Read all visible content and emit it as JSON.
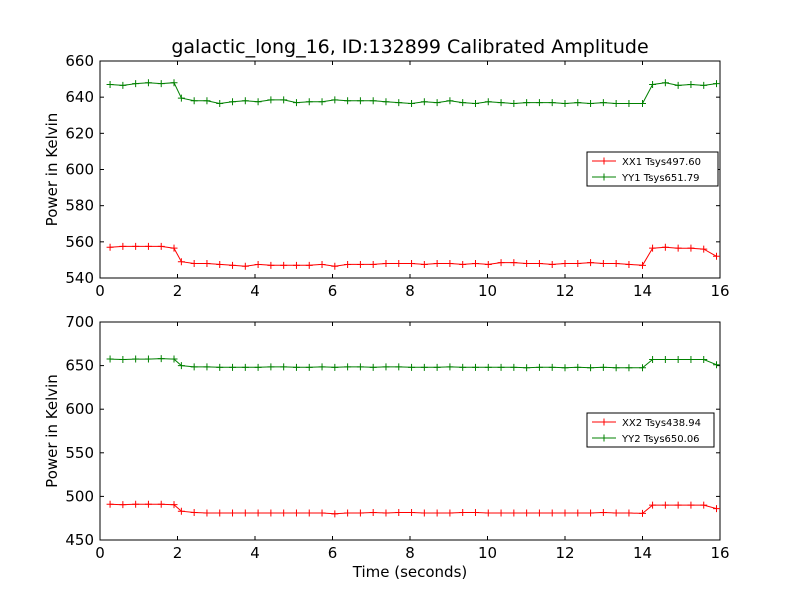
{
  "chart_data": [
    {
      "type": "line",
      "title": "galactic_long_16, ID:132899 Calibrated Amplitude",
      "xlabel": "",
      "ylabel": "Power in Kelvin",
      "xlim": [
        0,
        16
      ],
      "ylim": [
        540,
        660
      ],
      "xticks": [
        "0",
        "2",
        "4",
        "6",
        "8",
        "10",
        "12",
        "14",
        "16"
      ],
      "yticks": [
        "540",
        "560",
        "580",
        "600",
        "620",
        "640",
        "660"
      ],
      "legend": "center-right",
      "x": [
        0.26,
        0.59,
        0.92,
        1.25,
        1.58,
        1.91,
        2.1,
        2.43,
        2.76,
        3.09,
        3.42,
        3.75,
        4.08,
        4.41,
        4.74,
        5.07,
        5.4,
        5.73,
        6.06,
        6.39,
        6.72,
        7.05,
        7.38,
        7.71,
        8.04,
        8.37,
        8.7,
        9.03,
        9.36,
        9.69,
        10.02,
        10.35,
        10.68,
        11.01,
        11.34,
        11.67,
        12.0,
        12.33,
        12.66,
        12.99,
        13.32,
        13.65,
        14.0,
        14.26,
        14.59,
        14.92,
        15.25,
        15.58,
        15.91
      ],
      "series": [
        {
          "name": "XX1 Tsys497.60",
          "color": "#ff0000",
          "values": [
            557,
            557.5,
            557.5,
            557.5,
            557.5,
            556.5,
            549,
            548,
            548,
            547.5,
            547,
            546.5,
            547.5,
            547,
            547,
            547,
            547,
            547.5,
            546.5,
            547.5,
            547.5,
            547.5,
            548,
            548,
            548,
            547.5,
            548,
            548,
            547.5,
            548,
            547.5,
            548.5,
            548.5,
            548,
            548,
            547.5,
            548,
            548,
            548.5,
            548,
            548,
            547.5,
            547,
            556.5,
            557,
            556.5,
            556.5,
            556,
            552
          ]
        },
        {
          "name": "YY1 Tsys651.79",
          "color": "#008000",
          "values": [
            647,
            646.5,
            647.5,
            648,
            647.5,
            648,
            639.5,
            638,
            638,
            636.5,
            637.5,
            638,
            637.5,
            638.5,
            638.5,
            637,
            637.5,
            637.5,
            638.5,
            638,
            638,
            638,
            637.5,
            637,
            636.5,
            637.5,
            637,
            638,
            637,
            636.5,
            637.5,
            637,
            636.5,
            637,
            637,
            637,
            636.5,
            637,
            636.5,
            637,
            636.5,
            636.5,
            636.5,
            647,
            648,
            646.5,
            647,
            646.5,
            647.5
          ]
        }
      ]
    },
    {
      "type": "line",
      "title": "",
      "xlabel": "Time (seconds)",
      "ylabel": "Power in Kelvin",
      "xlim": [
        0,
        16
      ],
      "ylim": [
        450,
        700
      ],
      "xticks": [
        "0",
        "2",
        "4",
        "6",
        "8",
        "10",
        "12",
        "14",
        "16"
      ],
      "yticks": [
        "450",
        "500",
        "550",
        "600",
        "650",
        "700"
      ],
      "legend": "center-right",
      "x": [
        0.26,
        0.59,
        0.92,
        1.25,
        1.58,
        1.91,
        2.1,
        2.43,
        2.76,
        3.09,
        3.42,
        3.75,
        4.08,
        4.41,
        4.74,
        5.07,
        5.4,
        5.73,
        6.06,
        6.39,
        6.72,
        7.05,
        7.38,
        7.71,
        8.04,
        8.37,
        8.7,
        9.03,
        9.36,
        9.69,
        10.02,
        10.35,
        10.68,
        11.01,
        11.34,
        11.67,
        12.0,
        12.33,
        12.66,
        12.99,
        13.32,
        13.65,
        14.0,
        14.26,
        14.59,
        14.92,
        15.25,
        15.58,
        15.91
      ],
      "series": [
        {
          "name": "XX2 Tsys438.94",
          "color": "#ff0000",
          "values": [
            491,
            490.5,
            491,
            491,
            491,
            490.5,
            483,
            481.5,
            481,
            481,
            481,
            481,
            481,
            481,
            481,
            481,
            481,
            481,
            480,
            481,
            481,
            481.5,
            481,
            481.5,
            481.5,
            481,
            481,
            481,
            481.5,
            481.5,
            481,
            481,
            481,
            481,
            481,
            481,
            481,
            481,
            481,
            481.5,
            481,
            481,
            480.5,
            490,
            490,
            490,
            490,
            490,
            486
          ]
        },
        {
          "name": "YY2 Tsys650.06",
          "color": "#008000",
          "values": [
            657.5,
            657,
            657.5,
            657.5,
            658,
            657.5,
            650,
            648.5,
            648.5,
            648,
            648,
            648,
            648,
            648.5,
            648.5,
            648,
            648,
            648.5,
            648,
            648.5,
            648.5,
            648,
            648.5,
            648.5,
            648,
            648,
            648,
            648.5,
            648,
            648,
            648,
            648,
            648,
            647.5,
            648,
            648,
            647.5,
            648,
            647.5,
            648,
            647.5,
            647.5,
            647.5,
            657,
            657,
            657,
            657,
            657,
            651
          ]
        }
      ]
    }
  ]
}
